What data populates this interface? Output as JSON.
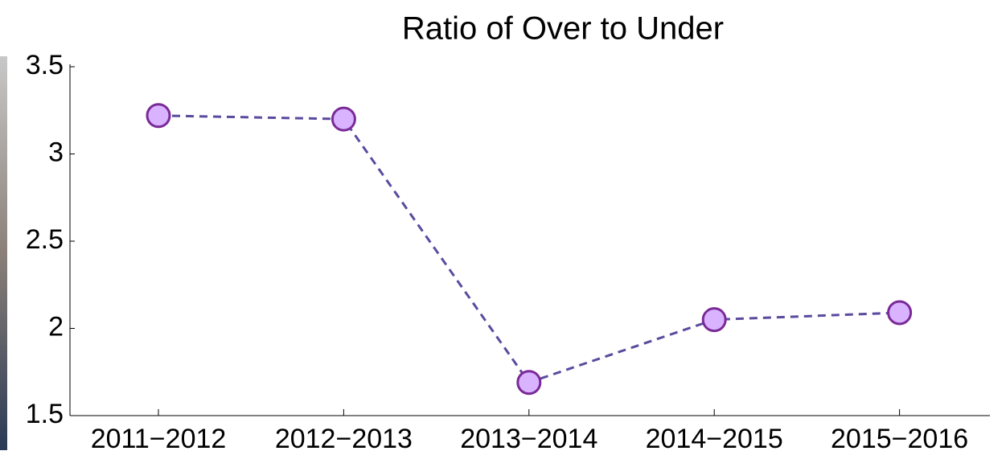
{
  "chart_data": {
    "type": "line",
    "title": "Ratio of Over to Under",
    "categories": [
      "2011−2012",
      "2012−2013",
      "2013−2014",
      "2014−2015",
      "2015−2016"
    ],
    "values": [
      3.22,
      3.2,
      1.69,
      2.05,
      2.09
    ],
    "color": "#5b4a9e",
    "marker_fill": "#d9b3ff",
    "marker_edge": "#7a2a96",
    "ylim": [
      1.5,
      3.5
    ],
    "yticks": [
      1.5,
      2,
      2.5,
      3,
      3.5
    ],
    "grid": false
  }
}
